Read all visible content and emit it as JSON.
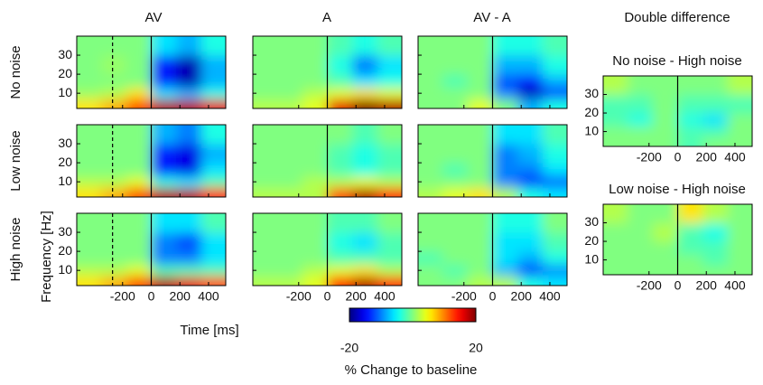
{
  "chart_data": {
    "type": "heatmap",
    "colormap": "jet",
    "columns": [
      "AV",
      "A",
      "AV - A"
    ],
    "rows": [
      "No noise",
      "Low noise",
      "High noise"
    ],
    "xlabel": "Time [ms]",
    "ylabel": "Frequency [Hz]",
    "xlim": [
      -520,
      520
    ],
    "ylim": [
      2,
      40
    ],
    "xticks": [
      -200,
      0,
      200,
      400
    ],
    "yticks": [
      10,
      20,
      30
    ],
    "onset": 0,
    "dashed_line": -270,
    "time_edges": [
      -520,
      -350,
      -175,
      0,
      175,
      350,
      520
    ],
    "freq_edges": [
      2,
      7,
      13,
      20,
      30,
      40
    ],
    "clim": [
      -20,
      20
    ],
    "colorbar_label": "% Change to baseline",
    "panels": [
      {
        "values": [
          [
            6,
            8,
            12,
            18,
            18,
            16
          ],
          [
            1,
            2,
            6,
            -6,
            -8,
            -4
          ],
          [
            0,
            0,
            0,
            -14,
            -18,
            -8
          ],
          [
            0,
            1,
            0,
            -14,
            -18,
            -8
          ],
          [
            0,
            0,
            0,
            -6,
            -8,
            -4
          ]
        ]
      },
      {
        "values": [
          [
            2,
            2,
            4,
            16,
            20,
            18
          ],
          [
            0,
            0,
            2,
            4,
            6,
            4
          ],
          [
            0,
            0,
            0,
            -2,
            -6,
            -4
          ],
          [
            0,
            0,
            0,
            -4,
            -10,
            -6
          ],
          [
            0,
            0,
            0,
            -2,
            -4,
            -2
          ]
        ]
      },
      {
        "values": [
          [
            0,
            0,
            4,
            0,
            -8,
            -4
          ],
          [
            0,
            0,
            0,
            -10,
            -18,
            -14
          ],
          [
            0,
            -2,
            0,
            -12,
            -14,
            -8
          ],
          [
            0,
            0,
            0,
            -8,
            -8,
            -4
          ],
          [
            0,
            0,
            0,
            -4,
            -4,
            -2
          ]
        ]
      },
      {
        "values": [
          [
            6,
            8,
            12,
            18,
            18,
            14
          ],
          [
            2,
            2,
            4,
            -4,
            -6,
            -2
          ],
          [
            0,
            0,
            0,
            -14,
            -16,
            -6
          ],
          [
            0,
            0,
            0,
            -14,
            -16,
            -8
          ],
          [
            0,
            0,
            0,
            -8,
            -10,
            -4
          ]
        ]
      },
      {
        "values": [
          [
            2,
            2,
            2,
            12,
            18,
            14
          ],
          [
            0,
            0,
            2,
            2,
            4,
            2
          ],
          [
            0,
            0,
            0,
            -2,
            -4,
            -2
          ],
          [
            0,
            0,
            0,
            -2,
            -4,
            -2
          ],
          [
            0,
            0,
            0,
            0,
            -2,
            0
          ]
        ]
      },
      {
        "values": [
          [
            2,
            4,
            6,
            2,
            -4,
            -6
          ],
          [
            0,
            0,
            0,
            -10,
            -14,
            -12
          ],
          [
            0,
            -2,
            0,
            -10,
            -10,
            -6
          ],
          [
            0,
            0,
            0,
            -10,
            -8,
            -4
          ],
          [
            0,
            0,
            0,
            -6,
            -6,
            -2
          ]
        ]
      },
      {
        "values": [
          [
            6,
            8,
            12,
            18,
            16,
            12
          ],
          [
            2,
            2,
            4,
            -2,
            -2,
            -2
          ],
          [
            0,
            0,
            0,
            -10,
            -10,
            -6
          ],
          [
            0,
            0,
            0,
            -10,
            -12,
            -6
          ],
          [
            0,
            0,
            0,
            -6,
            -6,
            -2
          ]
        ]
      },
      {
        "values": [
          [
            2,
            2,
            4,
            14,
            18,
            14
          ],
          [
            0,
            0,
            2,
            4,
            6,
            2
          ],
          [
            0,
            0,
            0,
            -2,
            -2,
            -2
          ],
          [
            0,
            0,
            0,
            -4,
            -6,
            -2
          ],
          [
            0,
            0,
            0,
            -2,
            -2,
            0
          ]
        ]
      },
      {
        "values": [
          [
            0,
            0,
            2,
            2,
            -4,
            -6
          ],
          [
            0,
            -2,
            0,
            -8,
            -14,
            -10
          ],
          [
            -2,
            0,
            0,
            -6,
            -8,
            -4
          ],
          [
            0,
            0,
            0,
            -6,
            -6,
            -2
          ],
          [
            0,
            0,
            0,
            -4,
            -4,
            0
          ]
        ]
      }
    ],
    "double_difference": {
      "title": "Double difference",
      "panels": [
        {
          "title": "No noise - High noise",
          "values": [
            [
              0,
              0,
              0,
              -2,
              0,
              0
            ],
            [
              0,
              0,
              0,
              -2,
              -2,
              0
            ],
            [
              -2,
              -4,
              0,
              -4,
              -6,
              0
            ],
            [
              -2,
              -2,
              0,
              -2,
              -2,
              -2
            ],
            [
              2,
              0,
              0,
              0,
              0,
              2
            ]
          ]
        },
        {
          "title": "Low noise - High noise",
          "values": [
            [
              0,
              0,
              0,
              0,
              0,
              0
            ],
            [
              0,
              0,
              0,
              0,
              -2,
              0
            ],
            [
              0,
              0,
              0,
              -2,
              -2,
              0
            ],
            [
              0,
              0,
              2,
              -2,
              -4,
              0
            ],
            [
              2,
              0,
              0,
              6,
              2,
              0
            ]
          ]
        }
      ]
    }
  }
}
